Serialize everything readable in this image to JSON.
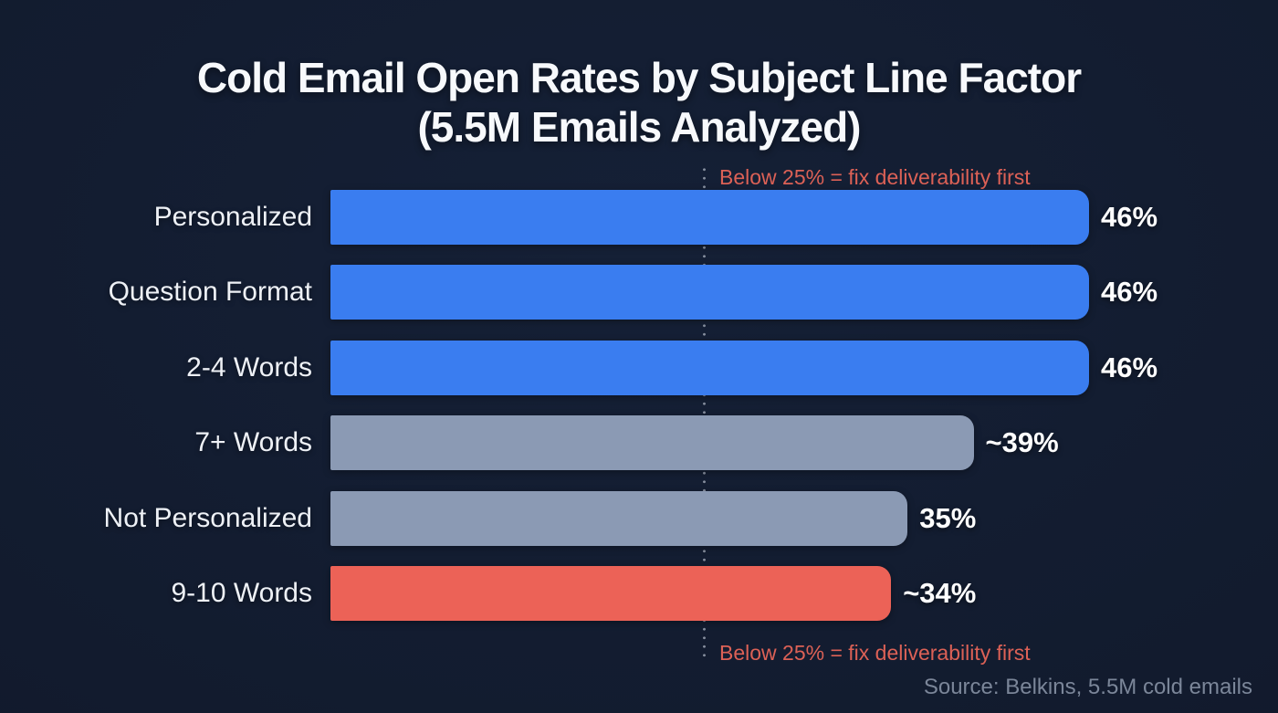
{
  "title": {
    "line1": "Cold Email Open Rates by Subject Line Factor",
    "line2": "(5.5M Emails Analyzed)"
  },
  "chart_data": {
    "type": "bar",
    "orientation": "horizontal",
    "title": "Cold Email Open Rates by Subject Line Factor (5.5M Emails Analyzed)",
    "axis_max": 46,
    "grid": false,
    "legend": false,
    "categories": [
      "Personalized",
      "Question Format",
      "2-4 Words",
      "7+ Words",
      "Not Personalized",
      "9-10 Words"
    ],
    "values": [
      46,
      46,
      46,
      39,
      35,
      34
    ],
    "value_labels": [
      "46%",
      "46%",
      "46%",
      "~39%",
      "35%",
      "~34%"
    ],
    "bar_colors": [
      "#3a7df0",
      "#3a7df0",
      "#3a7df0",
      "#8b9ab4",
      "#8b9ab4",
      "#ec6257"
    ],
    "threshold": {
      "value": 25,
      "label": "Below 25% = fix deliverability first"
    },
    "source": "Source: Belkins, 5.5M cold emails"
  },
  "colors": {
    "background": "#121b2e",
    "title_text": "#f7f9fc",
    "category_text": "#eef1f6",
    "value_text": "#ffffff",
    "bar_blue": "#3a7df0",
    "bar_gray": "#8b9ab4",
    "bar_red": "#ec6257",
    "annotation_text": "#dc6156",
    "threshold_dots": "#98a0af",
    "source_text": "#7b8699"
  }
}
